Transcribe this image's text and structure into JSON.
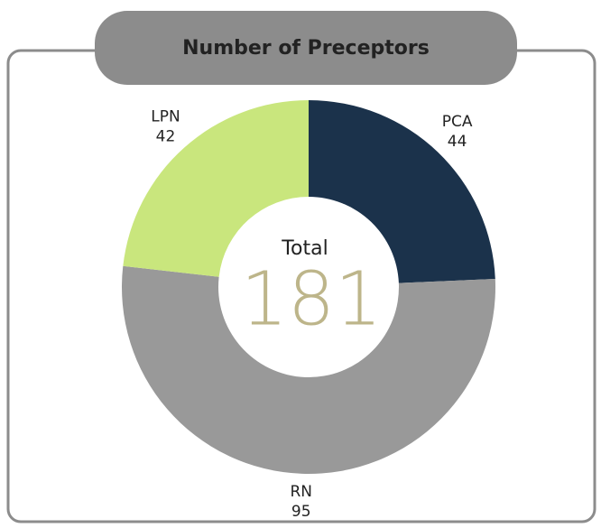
{
  "chart_data": {
    "type": "donut",
    "title": "Number of Preceptors",
    "categories": [
      "PCA",
      "RN",
      "LPN"
    ],
    "values": [
      44,
      95,
      42
    ],
    "colors": [
      "#1b324b",
      "#999999",
      "#c9e67d"
    ],
    "center_label": "Total",
    "center_value": 181
  }
}
